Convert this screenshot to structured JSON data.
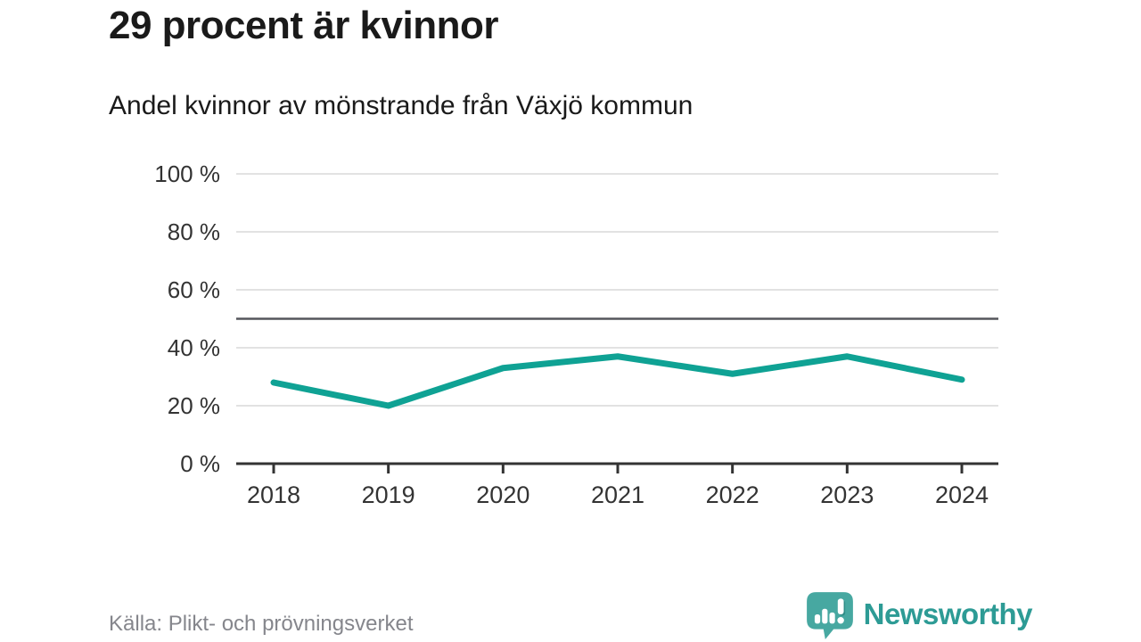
{
  "header": {
    "title": "29 procent är kvinnor",
    "subtitle": "Andel kvinnor av mönstrande från Växjö kommun"
  },
  "chart_data": {
    "type": "line",
    "title": "29 procent är kvinnor",
    "subtitle": "Andel kvinnor av mönstrande från Växjö kommun",
    "categories": [
      "2018",
      "2019",
      "2020",
      "2021",
      "2022",
      "2023",
      "2024"
    ],
    "series": [
      {
        "name": "Andel kvinnor av mönstrande",
        "values": [
          28,
          20,
          33,
          37,
          31,
          37,
          29
        ]
      }
    ],
    "xlabel": "",
    "ylabel": "",
    "ylim": [
      0,
      100
    ],
    "yticks": [
      0,
      20,
      40,
      60,
      80,
      100
    ],
    "ytick_suffix": " %",
    "reference_line": {
      "value": 50
    },
    "grid": true,
    "legend": false,
    "line_color": "#0fa294",
    "grid_color": "#e2e2e2",
    "reference_color": "#55565c",
    "axis_color": "#333333",
    "label_color": "#333333"
  },
  "footer": {
    "source": "Källa: Plikt- och prövningsverket",
    "brand": "Newsworthy"
  },
  "colors": {
    "title": "#1a1a1a",
    "subtitle": "#1a1a1a",
    "source": "#85868c",
    "brand_text": "#2d9b95",
    "brand_icon": "#47a8a1",
    "brand_icon_dark": "#2f8d87"
  }
}
